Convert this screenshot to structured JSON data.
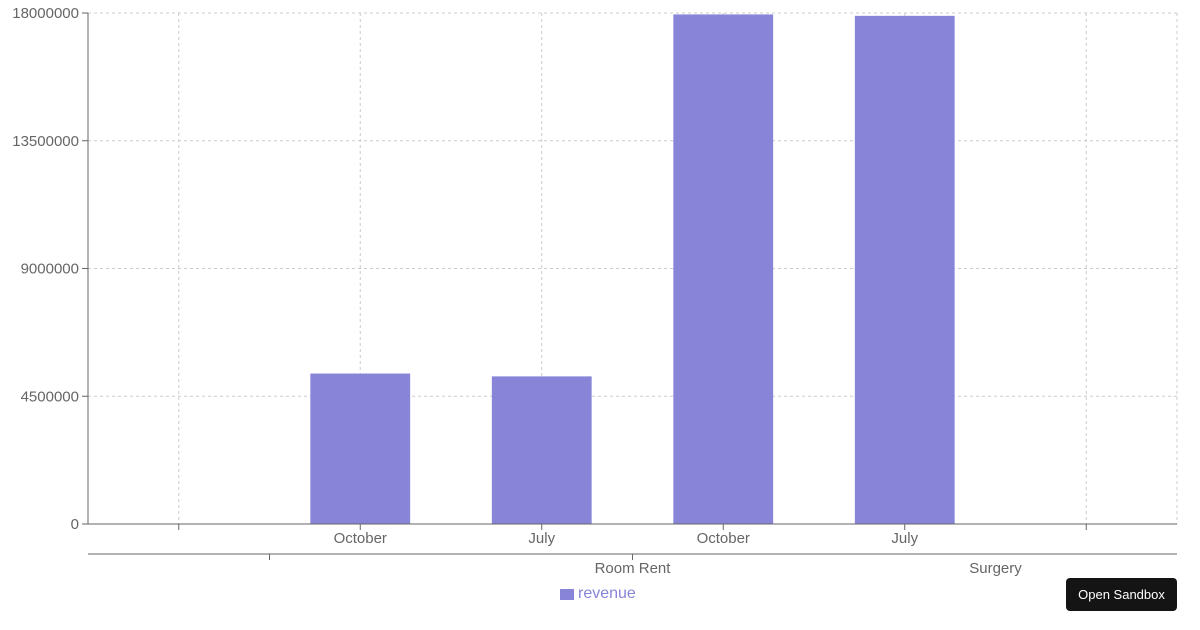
{
  "chart_data": {
    "type": "bar",
    "x_outer_categories": [
      "Room Rent",
      "Surgery"
    ],
    "categories": [
      {
        "month": "",
        "group": ""
      },
      {
        "month": "October",
        "group": "Room Rent"
      },
      {
        "month": "July",
        "group": "Room Rent"
      },
      {
        "month": "October",
        "group": "Surgery"
      },
      {
        "month": "July",
        "group": "Surgery"
      },
      {
        "month": "",
        "group": ""
      }
    ],
    "series": [
      {
        "name": "revenue",
        "values": [
          0,
          5300000,
          5200000,
          17950000,
          17900000,
          0
        ]
      }
    ],
    "yticks": [
      0,
      4500000,
      9000000,
      13500000,
      18000000
    ],
    "ylim": [
      0,
      18000000
    ],
    "grid": true,
    "legend_position": "bottom-center",
    "colors": {
      "bar": "#8884d8",
      "grid": "#cccccc",
      "axis": "#666666",
      "legend_text": "#8884d8"
    }
  },
  "legend": {
    "label": "revenue"
  },
  "sandbox_button": {
    "label": "Open Sandbox"
  }
}
